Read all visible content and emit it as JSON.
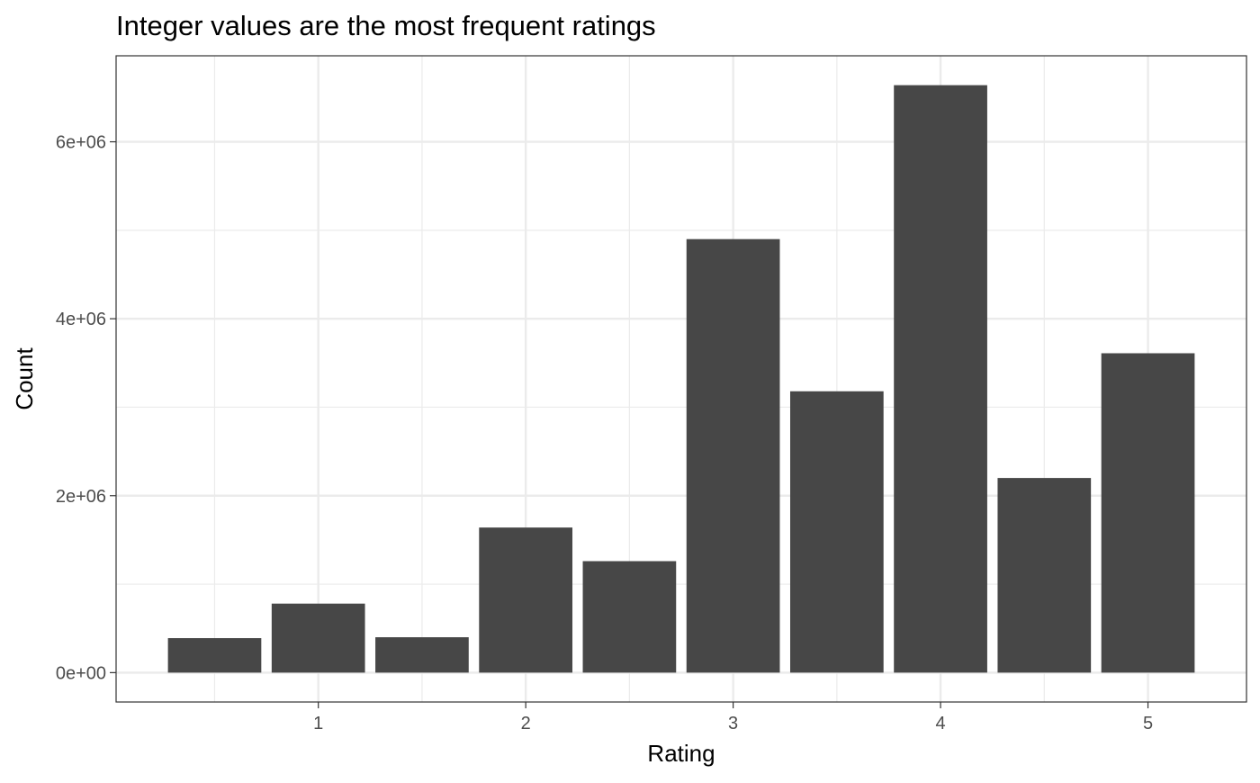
{
  "chart_data": {
    "type": "bar",
    "title": "Integer values are the most frequent ratings",
    "xlabel": "Rating",
    "ylabel": "Count",
    "x": [
      0.5,
      1,
      1.5,
      2,
      2.5,
      3,
      3.5,
      4,
      4.5,
      5
    ],
    "values": [
      390000,
      780000,
      400000,
      1640000,
      1260000,
      4900000,
      3180000,
      6640000,
      2200000,
      3610000
    ],
    "xlim": [
      0.025,
      5.475
    ],
    "ylim": [
      -332000,
      6972000
    ],
    "x_ticks": [
      1,
      2,
      3,
      4,
      5
    ],
    "x_tick_labels": [
      "1",
      "2",
      "3",
      "4",
      "5"
    ],
    "x_minor_ticks": [
      0.5,
      1.5,
      2.5,
      3.5,
      4.5
    ],
    "y_ticks": [
      0,
      2000000,
      4000000,
      6000000
    ],
    "y_tick_labels": [
      "0e+00",
      "2e+06",
      "4e+06",
      "6e+06"
    ],
    "y_minor_ticks": [
      1000000,
      3000000,
      5000000
    ],
    "grid": true,
    "bar_color": "#474747",
    "panel_border_color": "#333333",
    "grid_color": "#ebebeb"
  }
}
